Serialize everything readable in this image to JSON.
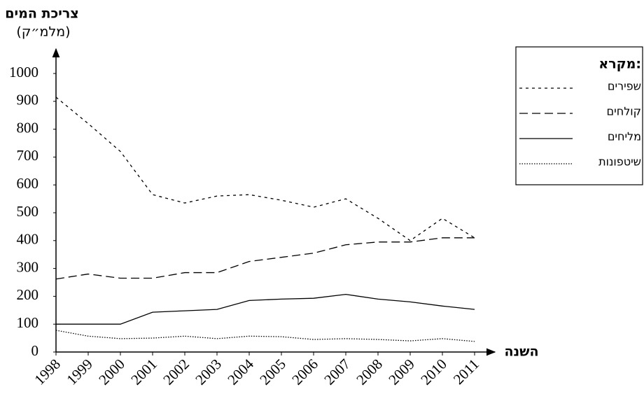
{
  "chart_data": {
    "type": "line",
    "y_title": "צריכת המים",
    "y_unit": "(מלמ״ק)",
    "x_title": "השנה",
    "legend_title": "מקרא:",
    "legend": "top-right",
    "categories": [
      "1998",
      "1999",
      "2000",
      "2001",
      "2002",
      "2003",
      "2004",
      "2005",
      "2006",
      "2007",
      "2008",
      "2009",
      "2010",
      "2011"
    ],
    "series": [
      {
        "name": "שפירים",
        "color": "#000000",
        "dash": "4 5",
        "values": [
          915,
          820,
          720,
          565,
          535,
          560,
          565,
          545,
          520,
          550,
          480,
          400,
          480,
          410
        ]
      },
      {
        "name": "קולחים",
        "color": "#000000",
        "dash": "12 6",
        "values": [
          262,
          280,
          265,
          265,
          285,
          285,
          325,
          340,
          355,
          385,
          395,
          395,
          410,
          410
        ]
      },
      {
        "name": "מליחים",
        "color": "#000000",
        "dash": "none",
        "values": [
          100,
          100,
          100,
          143,
          148,
          153,
          185,
          190,
          193,
          207,
          190,
          180,
          165,
          153
        ]
      },
      {
        "name": "שיטפונות",
        "color": "#000000",
        "dash": "1.5 2",
        "values": [
          78,
          57,
          48,
          50,
          57,
          48,
          57,
          55,
          45,
          48,
          45,
          40,
          48,
          38
        ]
      }
    ],
    "ylim": [
      0,
      1000
    ],
    "yticks": [
      0,
      100,
      200,
      300,
      400,
      500,
      600,
      700,
      800,
      900,
      1000
    ]
  }
}
